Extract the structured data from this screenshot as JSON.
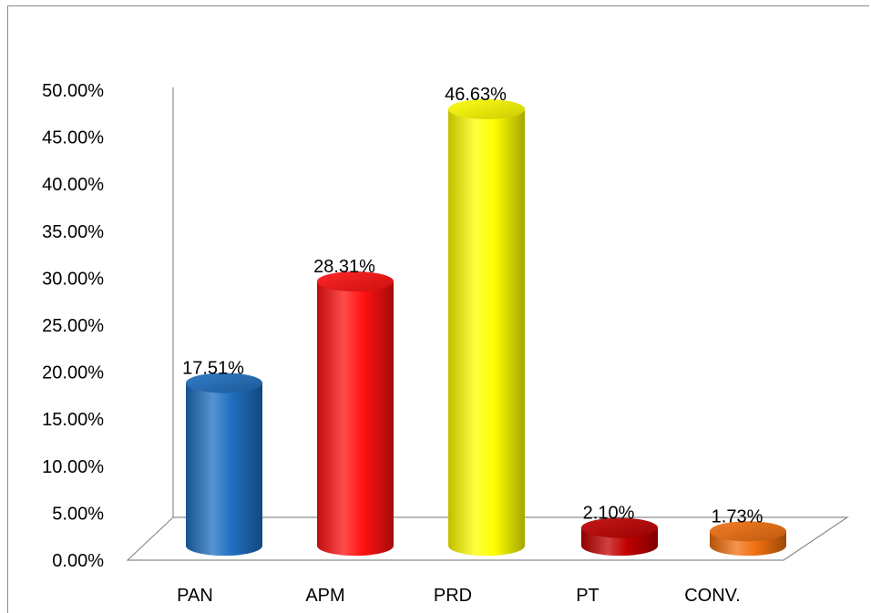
{
  "chart_data": {
    "type": "bar",
    "title": "",
    "xlabel": "",
    "ylabel": "",
    "ylim": [
      0,
      50
    ],
    "y_ticks": [
      "0.00%",
      "5.00%",
      "10.00%",
      "15.00%",
      "20.00%",
      "25.00%",
      "30.00%",
      "35.00%",
      "40.00%",
      "45.00%",
      "50.00%"
    ],
    "categories": [
      "PAN",
      "APM",
      "PRD",
      "PT",
      "CONV."
    ],
    "values": [
      17.51,
      28.31,
      46.63,
      2.1,
      1.73
    ],
    "data_labels": [
      "17.51%",
      "28.31%",
      "46.63%",
      "2.10%",
      "1.73%"
    ],
    "colors": [
      "#1f6fc0",
      "#ff1111",
      "#ffff00",
      "#c00000",
      "#f07010"
    ],
    "grid": false,
    "legend": "none",
    "style": "3d-cylinder"
  }
}
